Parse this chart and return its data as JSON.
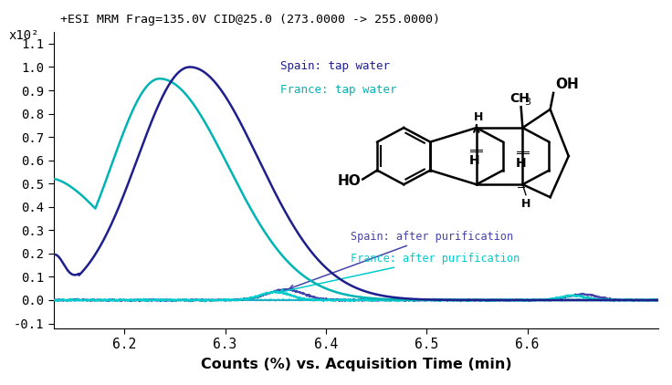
{
  "title": "+ESI MRM Frag=135.0V CID@25.0 (273.0000 -> 255.0000)",
  "xlabel": "Counts (%) vs. Acquisition Time (min)",
  "ylabel": "x10²",
  "xlim": [
    6.13,
    6.73
  ],
  "ylim": [
    -0.12,
    1.15
  ],
  "yticks": [
    -0.1,
    0.0,
    0.1,
    0.2,
    0.3,
    0.4,
    0.5,
    0.6,
    0.7,
    0.8,
    0.9,
    1.0,
    1.1
  ],
  "xticks": [
    6.2,
    6.3,
    6.4,
    6.5,
    6.6
  ],
  "color_spain_tap": "#1E1E8C",
  "color_france_tap": "#00B4B4",
  "color_spain_purif": "#4444AA",
  "color_france_purif": "#00CCCC",
  "legend_spain_tap": "Spain: tap water",
  "legend_france_tap": "France: tap water",
  "legend_spain_purif": "Spain: after purification",
  "legend_france_purif": "France: after purification",
  "background_color": "#ffffff"
}
